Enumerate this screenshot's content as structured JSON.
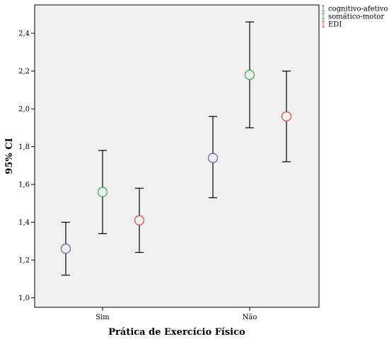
{
  "chart_data": {
    "type": "errorbar",
    "categories": [
      "Sim",
      "Não"
    ],
    "xlabel": "Prática de Exercício Físico",
    "ylabel": "95% CI",
    "ylim": [
      0.95,
      2.55
    ],
    "yticks": [
      1.0,
      1.2,
      1.4,
      1.6,
      1.8,
      2.0,
      2.2,
      2.4
    ],
    "ytick_labels": [
      "1,0",
      "1,2",
      "1,4",
      "1,6",
      "1,8",
      "2,0",
      "2,2",
      "2,4"
    ],
    "legend_position": "top-right",
    "grid": false,
    "series": [
      {
        "name": "cognitivo-afetivo",
        "color": "#6b6bb0",
        "mean": [
          1.26,
          1.74
        ],
        "lower": [
          1.12,
          1.53
        ],
        "upper": [
          1.4,
          1.96
        ]
      },
      {
        "name": "somático-motor",
        "color": "#3fae52",
        "mean": [
          1.56,
          2.18
        ],
        "lower": [
          1.34,
          1.9
        ],
        "upper": [
          1.78,
          2.46
        ]
      },
      {
        "name": "EDI",
        "color": "#d9534f",
        "mean": [
          1.41,
          1.96
        ],
        "lower": [
          1.24,
          1.72
        ],
        "upper": [
          1.58,
          2.2
        ]
      }
    ]
  }
}
